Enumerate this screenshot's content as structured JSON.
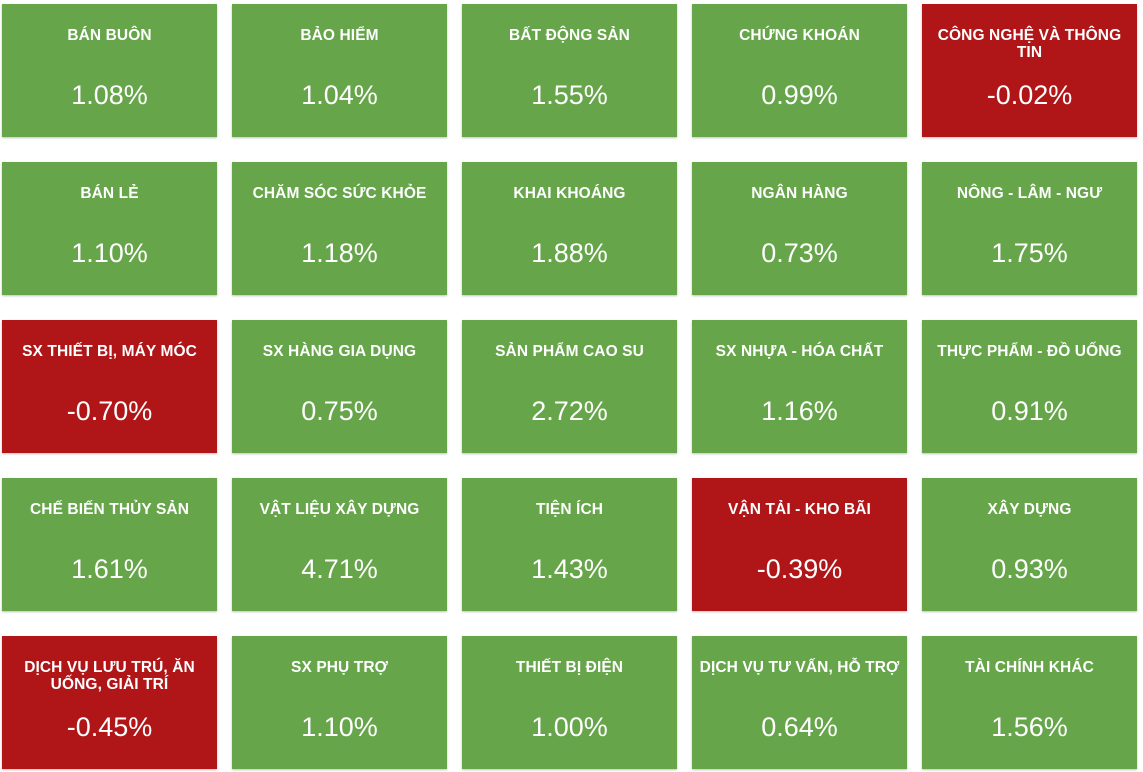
{
  "colors": {
    "positive": "#66a54a",
    "negative": "#b01518",
    "text": "#ffffff"
  },
  "sectors": [
    {
      "name": "BÁN BUÔN",
      "value": "1.08%",
      "trend": "up"
    },
    {
      "name": "BẢO HIỂM",
      "value": "1.04%",
      "trend": "up"
    },
    {
      "name": "BẤT ĐỘNG SẢN",
      "value": "1.55%",
      "trend": "up"
    },
    {
      "name": "CHỨNG KHOÁN",
      "value": "0.99%",
      "trend": "up"
    },
    {
      "name": "CÔNG NGHỆ VÀ THÔNG TIN",
      "value": "-0.02%",
      "trend": "down"
    },
    {
      "name": "BÁN LẺ",
      "value": "1.10%",
      "trend": "up"
    },
    {
      "name": "CHĂM SÓC SỨC KHỎE",
      "value": "1.18%",
      "trend": "up"
    },
    {
      "name": "KHAI KHOÁNG",
      "value": "1.88%",
      "trend": "up"
    },
    {
      "name": "NGÂN HÀNG",
      "value": "0.73%",
      "trend": "up"
    },
    {
      "name": "NÔNG - LÂM - NGƯ",
      "value": "1.75%",
      "trend": "up"
    },
    {
      "name": "SX THIẾT BỊ, MÁY MÓC",
      "value": "-0.70%",
      "trend": "down"
    },
    {
      "name": "SX HÀNG GIA DỤNG",
      "value": "0.75%",
      "trend": "up"
    },
    {
      "name": "SẢN PHẨM CAO SU",
      "value": "2.72%",
      "trend": "up"
    },
    {
      "name": "SX NHỰA - HÓA CHẤT",
      "value": "1.16%",
      "trend": "up"
    },
    {
      "name": "THỰC PHẨM - ĐỒ UỐNG",
      "value": "0.91%",
      "trend": "up"
    },
    {
      "name": "CHẾ BIẾN THỦY SẢN",
      "value": "1.61%",
      "trend": "up"
    },
    {
      "name": "VẬT LIỆU XÂY DỰNG",
      "value": "4.71%",
      "trend": "up"
    },
    {
      "name": "TIỆN ÍCH",
      "value": "1.43%",
      "trend": "up"
    },
    {
      "name": "VẬN TẢI - KHO BÃI",
      "value": "-0.39%",
      "trend": "down"
    },
    {
      "name": "XÂY DỰNG",
      "value": "0.93%",
      "trend": "up"
    },
    {
      "name": "DỊCH VỤ LƯU TRÚ, ĂN UỐNG, GIẢI TRÍ",
      "value": "-0.45%",
      "trend": "down"
    },
    {
      "name": "SX PHỤ TRỢ",
      "value": "1.10%",
      "trend": "up"
    },
    {
      "name": "THIẾT BỊ ĐIỆN",
      "value": "1.00%",
      "trend": "up"
    },
    {
      "name": "DỊCH VỤ TƯ VẤN, HỖ TRỢ",
      "value": "0.64%",
      "trend": "up"
    },
    {
      "name": "TÀI CHÍNH KHÁC",
      "value": "1.56%",
      "trend": "up"
    }
  ]
}
